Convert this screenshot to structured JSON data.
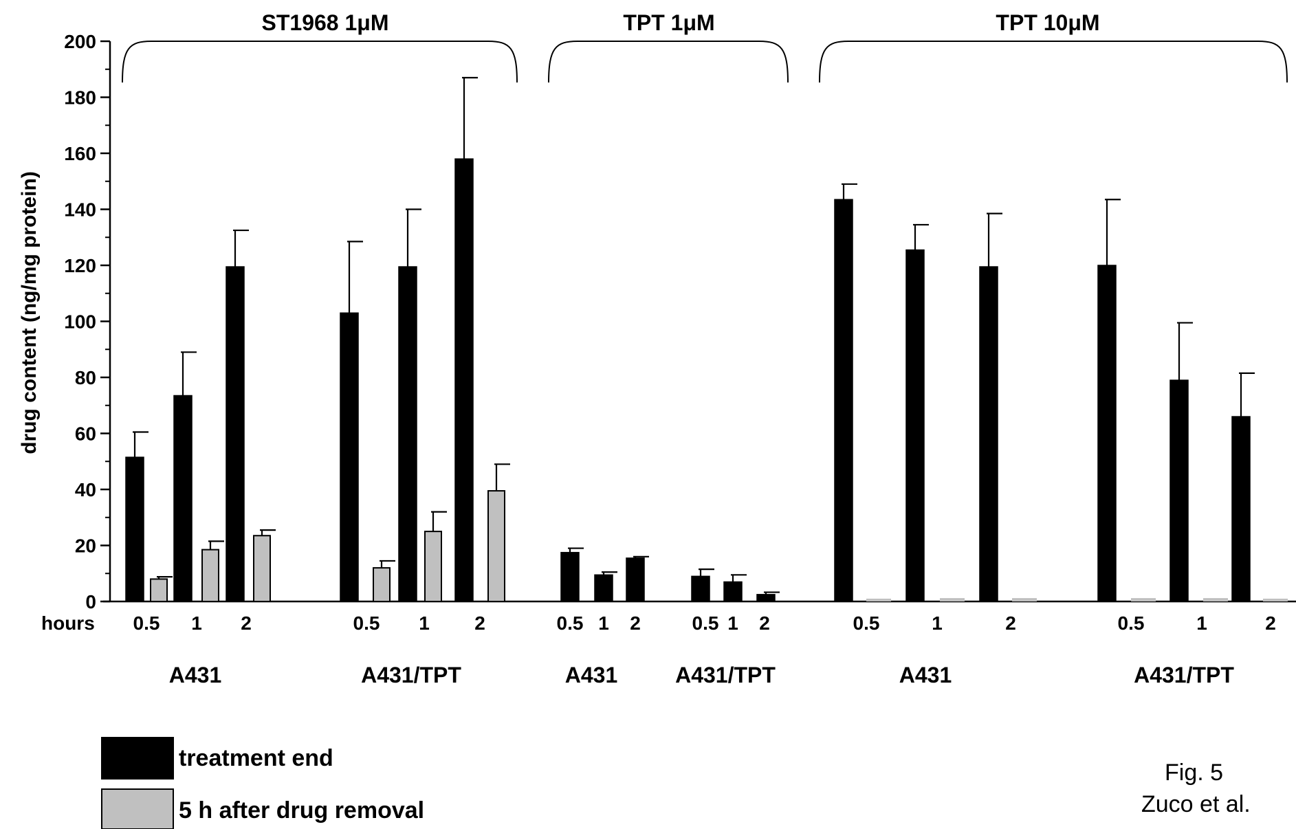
{
  "chart_data": {
    "type": "bar",
    "ylabel": "drug content (ng/mg protein)",
    "ylim": [
      0,
      200
    ],
    "yticks": [
      0,
      20,
      40,
      60,
      80,
      100,
      120,
      140,
      160,
      180,
      200
    ],
    "x_axis_prefix": "hours",
    "series": [
      {
        "name": "treatment end",
        "color": "#000000"
      },
      {
        "name": "5 h after drug removal",
        "color": "#c0c0c0"
      }
    ],
    "treatments": [
      {
        "name": "ST1968 1μM",
        "cell_lines": [
          {
            "name": "A431",
            "hours": [
              "0.5",
              "1",
              "2"
            ],
            "treatment_end": [
              51.5,
              73.5,
              119.5
            ],
            "treatment_end_err": [
              9.0,
              15.5,
              13.0
            ],
            "after_removal": [
              8.0,
              18.5,
              23.5
            ],
            "after_removal_err": [
              0.8,
              3.0,
              2.0
            ]
          },
          {
            "name": "A431/TPT",
            "hours": [
              "0.5",
              "1",
              "2"
            ],
            "treatment_end": [
              103.0,
              119.5,
              158.0
            ],
            "treatment_end_err": [
              25.5,
              20.5,
              29.0
            ],
            "after_removal": [
              12.0,
              25.0,
              39.5
            ],
            "after_removal_err": [
              2.5,
              7.0,
              9.5
            ]
          }
        ]
      },
      {
        "name": "TPT 1μM",
        "cell_lines": [
          {
            "name": "A431",
            "hours": [
              "0.5",
              "1",
              "2"
            ],
            "treatment_end": [
              17.5,
              9.5,
              15.5
            ],
            "treatment_end_err": [
              1.5,
              1.0,
              0.5
            ],
            "after_removal": [
              0,
              0,
              0
            ],
            "after_removal_err": [
              0,
              0,
              0
            ]
          },
          {
            "name": "A431/TPT",
            "hours": [
              "0.5",
              "1",
              "2"
            ],
            "treatment_end": [
              9.0,
              7.0,
              2.5
            ],
            "treatment_end_err": [
              2.5,
              2.5,
              0.8
            ],
            "after_removal": [
              0,
              0,
              0
            ],
            "after_removal_err": [
              0,
              0,
              0
            ]
          }
        ]
      },
      {
        "name": "TPT 10μM",
        "cell_lines": [
          {
            "name": "A431",
            "hours": [
              "0.5",
              "1",
              "2"
            ],
            "treatment_end": [
              143.5,
              125.5,
              119.5
            ],
            "treatment_end_err": [
              5.5,
              9.0,
              19.0
            ],
            "after_removal": [
              1.0,
              1.2,
              1.2
            ],
            "after_removal_err": [
              0,
              0,
              0
            ]
          },
          {
            "name": "A431/TPT",
            "hours": [
              "0.5",
              "1",
              "2"
            ],
            "treatment_end": [
              120.0,
              79.0,
              66.0
            ],
            "treatment_end_err": [
              23.5,
              20.5,
              15.5
            ],
            "after_removal": [
              1.2,
              1.2,
              1.0
            ],
            "after_removal_err": [
              0,
              0,
              0
            ]
          }
        ]
      }
    ],
    "legend": {
      "entries": [
        "treatment end",
        "5 h after drug removal"
      ],
      "position": "bottom-left"
    },
    "grid": false
  },
  "annotation": {
    "line1": "Fig. 5",
    "line2": "Zuco et al."
  }
}
